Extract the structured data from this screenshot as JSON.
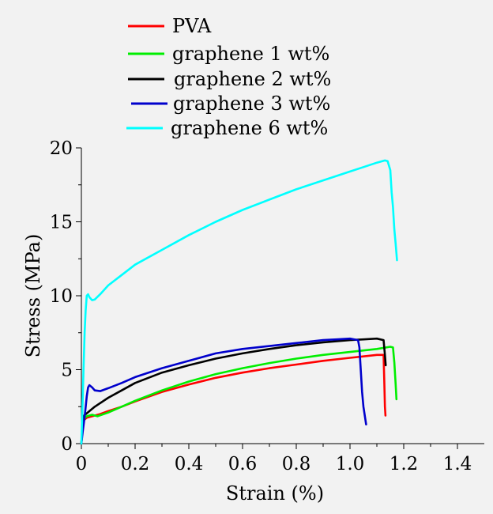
{
  "chart_data": {
    "type": "line",
    "title": "",
    "xlabel": "Strain (%)",
    "ylabel": "Stress (MPa)",
    "xlim": [
      0,
      1.5
    ],
    "ylim": [
      0,
      20
    ],
    "x_ticks": [
      0,
      0.2,
      0.4,
      0.6,
      0.8,
      1.0,
      1.2,
      1.4
    ],
    "x_tick_labels": [
      "0",
      "0.2",
      "0.4",
      "0.6",
      "0.8",
      "1.0",
      "1.2",
      "1.4"
    ],
    "y_ticks": [
      0,
      5,
      10,
      15,
      20
    ],
    "y_tick_labels": [
      "0",
      "5",
      "10",
      "15",
      "20"
    ],
    "grid": false,
    "legend_position": "top-center",
    "series": [
      {
        "name": "PVA",
        "color": "#ff0000",
        "x": [
          0.0,
          0.003,
          0.006,
          0.01,
          0.02,
          0.04,
          0.07,
          0.1,
          0.15,
          0.2,
          0.3,
          0.4,
          0.5,
          0.6,
          0.7,
          0.8,
          0.9,
          1.0,
          1.05,
          1.1,
          1.125,
          1.128,
          1.13,
          1.132
        ],
        "y": [
          0.0,
          0.8,
          1.4,
          1.6,
          1.75,
          1.85,
          2.0,
          2.2,
          2.5,
          2.85,
          3.5,
          4.0,
          4.45,
          4.8,
          5.1,
          5.35,
          5.6,
          5.8,
          5.9,
          6.0,
          6.0,
          4.0,
          2.5,
          1.9
        ]
      },
      {
        "name": "graphene 1 wt%",
        "color": "#00ee00",
        "x": [
          0.0,
          0.003,
          0.006,
          0.01,
          0.02,
          0.04,
          0.06,
          0.1,
          0.15,
          0.2,
          0.3,
          0.4,
          0.5,
          0.6,
          0.7,
          0.8,
          0.9,
          1.0,
          1.1,
          1.15,
          1.16,
          1.165,
          1.17,
          1.173
        ],
        "y": [
          0.0,
          0.8,
          1.5,
          1.7,
          1.85,
          1.95,
          1.85,
          2.1,
          2.5,
          2.9,
          3.6,
          4.2,
          4.7,
          5.1,
          5.45,
          5.75,
          6.0,
          6.2,
          6.4,
          6.55,
          6.5,
          5.5,
          4.0,
          3.0
        ]
      },
      {
        "name": "graphene 2 wt%",
        "color": "#000000",
        "x": [
          0.0,
          0.003,
          0.006,
          0.01,
          0.03,
          0.05,
          0.1,
          0.15,
          0.2,
          0.3,
          0.4,
          0.5,
          0.6,
          0.7,
          0.8,
          0.9,
          1.0,
          1.05,
          1.1,
          1.125,
          1.13,
          1.133
        ],
        "y": [
          0.0,
          0.8,
          1.5,
          1.9,
          2.2,
          2.5,
          3.1,
          3.6,
          4.1,
          4.8,
          5.3,
          5.75,
          6.1,
          6.4,
          6.65,
          6.85,
          7.0,
          7.05,
          7.1,
          7.0,
          6.0,
          5.3
        ]
      },
      {
        "name": "graphene 3 wt%",
        "color": "#0000cc",
        "x": [
          0.0,
          0.005,
          0.01,
          0.015,
          0.02,
          0.025,
          0.03,
          0.04,
          0.05,
          0.07,
          0.1,
          0.15,
          0.2,
          0.3,
          0.4,
          0.5,
          0.6,
          0.7,
          0.8,
          0.9,
          0.95,
          1.0,
          1.03,
          1.035,
          1.04,
          1.045,
          1.05,
          1.06
        ],
        "y": [
          0.0,
          0.8,
          1.5,
          2.3,
          3.2,
          3.8,
          3.95,
          3.8,
          3.6,
          3.55,
          3.75,
          4.1,
          4.5,
          5.1,
          5.6,
          6.1,
          6.4,
          6.6,
          6.8,
          7.0,
          7.05,
          7.1,
          7.0,
          6.5,
          5.0,
          3.5,
          2.5,
          1.3
        ]
      },
      {
        "name": "graphene 6 wt%",
        "color": "#00ffff",
        "x": [
          0.0,
          0.004,
          0.008,
          0.012,
          0.016,
          0.02,
          0.025,
          0.03,
          0.04,
          0.05,
          0.07,
          0.1,
          0.15,
          0.2,
          0.3,
          0.4,
          0.5,
          0.6,
          0.7,
          0.8,
          0.9,
          1.0,
          1.05,
          1.1,
          1.13,
          1.14,
          1.15,
          1.155,
          1.16,
          1.165,
          1.17,
          1.175
        ],
        "y": [
          0.0,
          2.5,
          5.0,
          7.5,
          9.0,
          10.0,
          10.1,
          9.9,
          9.7,
          9.75,
          10.1,
          10.7,
          11.4,
          12.1,
          13.1,
          14.1,
          15.0,
          15.8,
          16.5,
          17.2,
          17.8,
          18.4,
          18.7,
          19.0,
          19.15,
          19.1,
          18.5,
          17.0,
          16.0,
          14.5,
          13.5,
          12.4
        ]
      }
    ]
  }
}
